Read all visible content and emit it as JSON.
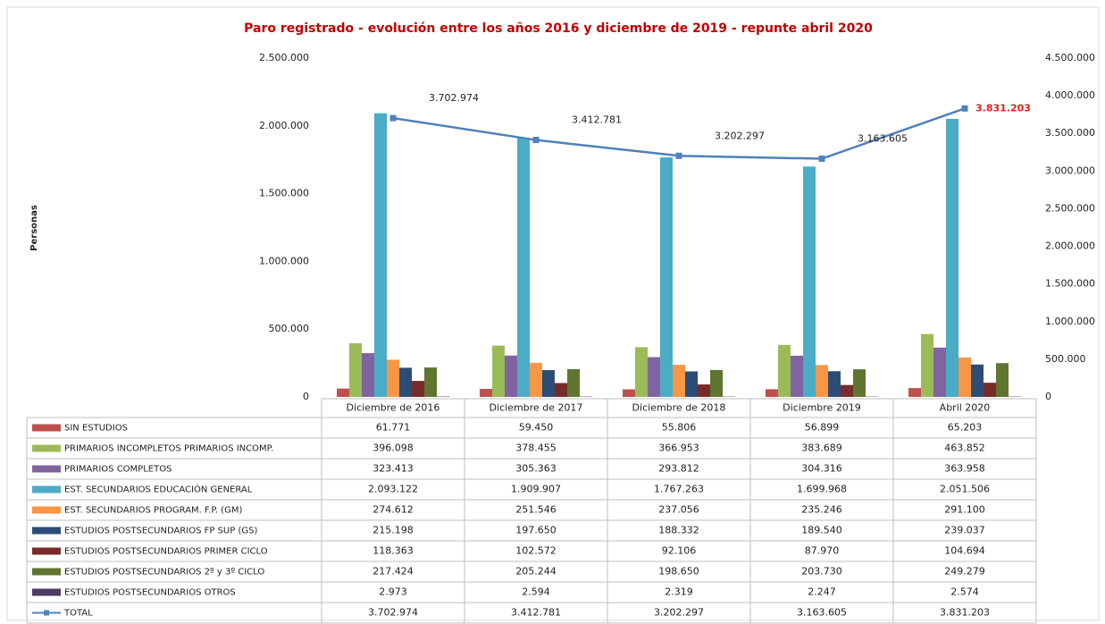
{
  "chart_data": {
    "type": "bar",
    "title": "Paro registrado - evolución entre los años 2016 y diciembre de 2019 - repunte abril 2020",
    "y_label": "Personas",
    "categories": [
      "Diciembre de 2016",
      "Diciembre de 2017",
      "Diciembre de 2018",
      "Diciembre 2019",
      "Abril 2020"
    ],
    "ylim": [
      0,
      2500000
    ],
    "yticks": [
      0,
      {
        "value": 500000,
        "label": "500.000"
      },
      {
        "value": 1000000,
        "label": "1.000.000"
      },
      {
        "value": 1500000,
        "label": "1.500.000"
      },
      {
        "value": 2000000,
        "label": "2.000.000"
      },
      {
        "value": 2500000,
        "label": "2.500.000"
      }
    ],
    "y2lim": [
      0,
      4500000
    ],
    "y2ticks": [
      0,
      {
        "value": 500000,
        "label": "500.000"
      },
      {
        "value": 1000000,
        "label": "1.000.000"
      },
      {
        "value": 1500000,
        "label": "1.500.000"
      },
      {
        "value": 2000000,
        "label": "2.000.000"
      },
      {
        "value": 2500000,
        "label": "2.500.000"
      },
      {
        "value": 3000000,
        "label": "3.000.000"
      },
      {
        "value": 3500000,
        "label": "3.500.000"
      },
      {
        "value": 4000000,
        "label": "4.000.000"
      },
      {
        "value": 4500000,
        "label": "4.500.000"
      }
    ],
    "series": [
      {
        "name": "SIN ESTUDIOS",
        "color": "#c0504d",
        "values": [
          61771,
          59450,
          55806,
          56899,
          65203
        ],
        "value_labels": [
          "61.771",
          "59.450",
          "55.806",
          "56.899",
          "65.203"
        ]
      },
      {
        "name": "PRIMARIOS INCOMPLETOS PRIMARIOS INCOMP.",
        "color": "#9bbb59",
        "values": [
          396098,
          378455,
          366953,
          383689,
          463852
        ],
        "value_labels": [
          "396.098",
          "378.455",
          "366.953",
          "383.689",
          "463.852"
        ]
      },
      {
        "name": "PRIMARIOS COMPLETOS",
        "color": "#8064a2",
        "values": [
          323413,
          305363,
          293812,
          304316,
          363958
        ],
        "value_labels": [
          "323.413",
          "305.363",
          "293.812",
          "304.316",
          "363.958"
        ]
      },
      {
        "name": "EST. SECUNDARIOS EDUCACIÓN GENERAL",
        "color": "#4bacc6",
        "values": [
          2093122,
          1909907,
          1767263,
          1699968,
          2051506
        ],
        "value_labels": [
          "2.093.122",
          "1.909.907",
          "1.767.263",
          "1.699.968",
          "2.051.506"
        ]
      },
      {
        "name": "EST. SECUNDARIOS PROGRAM. F.P. (GM)",
        "color": "#f79646",
        "values": [
          274612,
          251546,
          237056,
          235246,
          291100
        ],
        "value_labels": [
          "274.612",
          "251.546",
          "237.056",
          "235.246",
          "291.100"
        ]
      },
      {
        "name": "ESTUDIOS POSTSECUNDARIOS FP SUP (GS)",
        "color": "#2c4d75",
        "values": [
          215198,
          197650,
          188332,
          189540,
          239037
        ],
        "value_labels": [
          "215.198",
          "197.650",
          "188.332",
          "189.540",
          "239.037"
        ]
      },
      {
        "name": "ESTUDIOS POSTSECUNDARIOS PRIMER CICLO",
        "color": "#772c2a",
        "values": [
          118363,
          102572,
          92106,
          87970,
          104694
        ],
        "value_labels": [
          "118.363",
          "102.572",
          "92.106",
          "87.970",
          "104.694"
        ]
      },
      {
        "name": "ESTUDIOS POSTSECUNDARIOS 2º y 3º CICLO",
        "color": "#5f7530",
        "values": [
          217424,
          205244,
          198650,
          203730,
          249279
        ],
        "value_labels": [
          "217.424",
          "205.244",
          "198.650",
          "203.730",
          "249.279"
        ]
      },
      {
        "name": "ESTUDIOS POSTSECUNDARIOS OTROS",
        "color": "#4d3b62",
        "values": [
          2973,
          2594,
          2319,
          2247,
          2574
        ],
        "value_labels": [
          "2.973",
          "2.594",
          "2.319",
          "2.247",
          "2.574"
        ]
      },
      {
        "name": "TOTAL",
        "type": "line",
        "axis": "y2",
        "color": "#4f81bd",
        "values": [
          3702974,
          3412781,
          3202297,
          3163605,
          3831203
        ],
        "value_labels": [
          "3.702.974",
          "3.412.781",
          "3.202.297",
          "3.163.605",
          "3.831.203"
        ],
        "highlight_color": "#e02020"
      }
    ]
  }
}
